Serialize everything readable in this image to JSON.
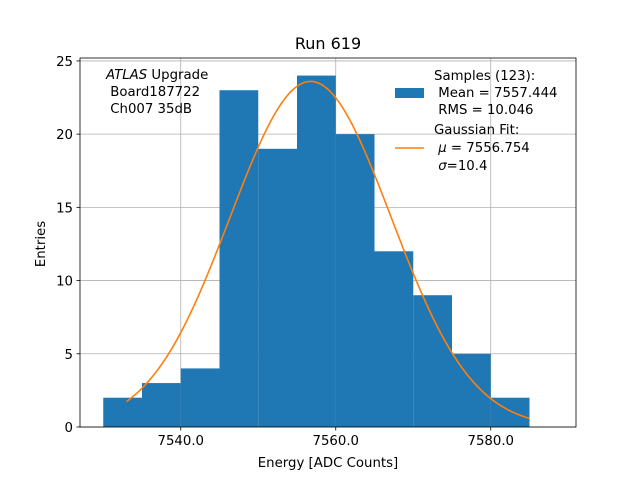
{
  "chart_data": {
    "type": "bar",
    "title": "Run 619",
    "xlabel": "Energy [ADC Counts]",
    "ylabel": "Entries",
    "xlim": [
      7527,
      7591
    ],
    "ylim": [
      0,
      25.2
    ],
    "grid": true,
    "x_ticks": [
      7540.0,
      7560.0,
      7580.0
    ],
    "x_tick_labels": [
      "7540.0",
      "7560.0",
      "7580.0"
    ],
    "y_ticks": [
      0,
      5,
      10,
      15,
      20,
      25
    ],
    "y_tick_labels": [
      "0",
      "5",
      "10",
      "15",
      "20",
      "25"
    ],
    "bins": {
      "edges": [
        7530,
        7535,
        7540,
        7545,
        7550,
        7555,
        7560,
        7565,
        7570,
        7575,
        7580,
        7585
      ],
      "counts": [
        2,
        3,
        4,
        23,
        19,
        24,
        20,
        12,
        9,
        5,
        2
      ]
    },
    "fit": {
      "mu": 7556.754,
      "sigma": 10.4,
      "amplitude": 23.6,
      "x_range": [
        7533,
        7585
      ]
    },
    "annotation": {
      "line1_italic": "ATLAS",
      "line1_rest": " Upgrade",
      "line2": " Board187722",
      "line3": " Ch007 35dB"
    },
    "legend": {
      "placement": "top-right",
      "samples_line1": "Samples (123):",
      "samples_line2": " Mean = 7557.444",
      "samples_line3": " RMS = 10.046",
      "fit_line1": "Gaussian Fit:",
      "fit_line2_pre": " ",
      "fit_line2_sym": "μ",
      "fit_line2_post": " = 7556.754",
      "fit_line3_pre": " ",
      "fit_line3_sym": "σ",
      "fit_line3_post": "=10.4"
    },
    "colors": {
      "bars": "#1f77b4",
      "fit": "#ff7f0e",
      "grid": "#b0b0b0"
    }
  }
}
